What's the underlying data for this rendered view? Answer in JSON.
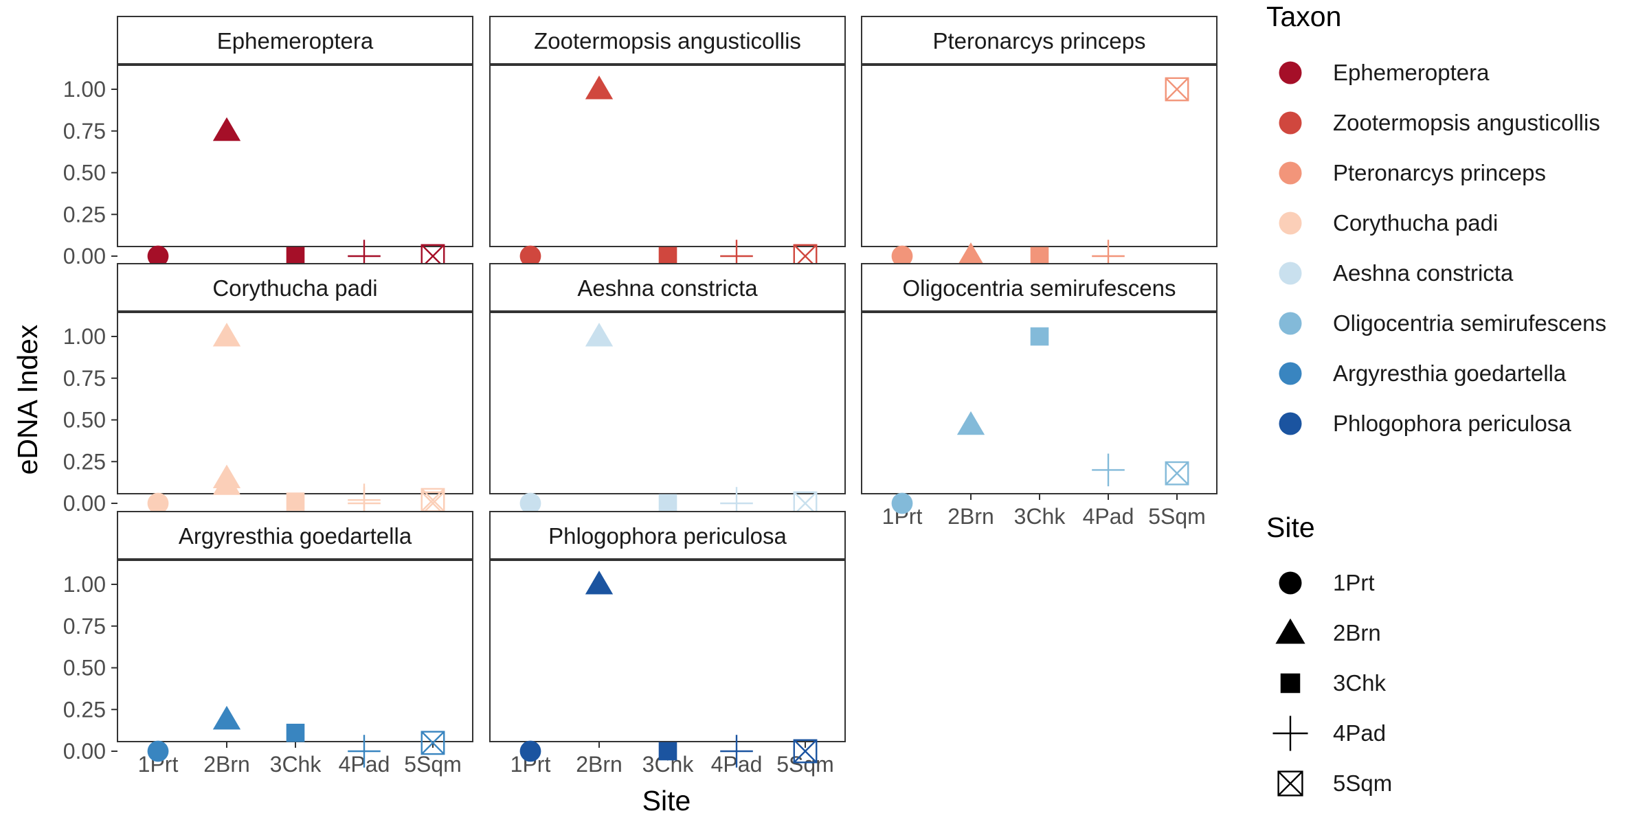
{
  "chart_data": {
    "type": "scatter",
    "facet_type": "faceted scatter (3 columns)",
    "xlabel": "Site",
    "ylabel": "eDNA Index",
    "categories": [
      "1Prt",
      "2Brn",
      "3Chk",
      "4Pad",
      "5Sqm"
    ],
    "ylim": [
      0,
      1
    ],
    "yticks": [
      "0.00",
      "0.25",
      "0.50",
      "0.75",
      "1.00"
    ],
    "grid": false,
    "legend_placement": "right",
    "legend_taxon": {
      "title": "Taxon",
      "entries": [
        {
          "name": "Ephemeroptera",
          "color": "#a50f28"
        },
        {
          "name": "Zootermopsis angusticollis",
          "color": "#d0473e"
        },
        {
          "name": "Pteronarcys princeps",
          "color": "#f2957a"
        },
        {
          "name": "Corythucha padi",
          "color": "#fbcfb8"
        },
        {
          "name": "Aeshna constricta",
          "color": "#c9e0ee"
        },
        {
          "name": "Oligocentria semirufescens",
          "color": "#83bad9"
        },
        {
          "name": "Argyresthia goedartella",
          "color": "#3985c0"
        },
        {
          "name": "Phlogophora periculosa",
          "color": "#1b54a0"
        }
      ]
    },
    "legend_site": {
      "title": "Site",
      "entries": [
        {
          "name": "1Prt",
          "shape": "circle"
        },
        {
          "name": "2Brn",
          "shape": "triangle"
        },
        {
          "name": "3Chk",
          "shape": "square"
        },
        {
          "name": "4Pad",
          "shape": "plus"
        },
        {
          "name": "5Sqm",
          "shape": "boxed-x"
        }
      ]
    },
    "panels": [
      {
        "title": "Ephemeroptera",
        "color": "#a50f28",
        "points": [
          {
            "site": "1Prt",
            "value": 0
          },
          {
            "site": "2Brn",
            "value": 0.75
          },
          {
            "site": "3Chk",
            "value": 0
          },
          {
            "site": "4Pad",
            "value": 0
          },
          {
            "site": "5Sqm",
            "value": 0
          }
        ]
      },
      {
        "title": "Zootermopsis angusticollis",
        "color": "#d0473e",
        "points": [
          {
            "site": "1Prt",
            "value": 0
          },
          {
            "site": "2Brn",
            "value": 1.0
          },
          {
            "site": "3Chk",
            "value": 0
          },
          {
            "site": "4Pad",
            "value": 0
          },
          {
            "site": "5Sqm",
            "value": 0
          }
        ]
      },
      {
        "title": "Pteronarcys princeps",
        "color": "#f2957a",
        "points": [
          {
            "site": "1Prt",
            "value": 0
          },
          {
            "site": "2Brn",
            "value": 0
          },
          {
            "site": "3Chk",
            "value": 0
          },
          {
            "site": "4Pad",
            "value": 0
          },
          {
            "site": "5Sqm",
            "value": 1.0
          }
        ]
      },
      {
        "title": "Corythucha padi",
        "color": "#fbcfb8",
        "points": [
          {
            "site": "1Prt",
            "value": 0
          },
          {
            "site": "2Brn",
            "value": 1.0
          },
          {
            "site": "2Brn",
            "value": 0.15
          },
          {
            "site": "2Brn",
            "value": 0.11
          },
          {
            "site": "3Chk",
            "value": 0.01
          },
          {
            "site": "4Pad",
            "value": 0.02
          },
          {
            "site": "4Pad",
            "value": 0
          },
          {
            "site": "5Sqm",
            "value": 0.02
          },
          {
            "site": "5Sqm",
            "value": 0
          }
        ]
      },
      {
        "title": "Aeshna constricta",
        "color": "#c9e0ee",
        "points": [
          {
            "site": "1Prt",
            "value": 0
          },
          {
            "site": "2Brn",
            "value": 1.0
          },
          {
            "site": "3Chk",
            "value": 0
          },
          {
            "site": "4Pad",
            "value": 0
          },
          {
            "site": "5Sqm",
            "value": 0
          }
        ]
      },
      {
        "title": "Oligocentria semirufescens",
        "color": "#83bad9",
        "points": [
          {
            "site": "1Prt",
            "value": 0
          },
          {
            "site": "2Brn",
            "value": 0.47
          },
          {
            "site": "3Chk",
            "value": 1.0
          },
          {
            "site": "4Pad",
            "value": 0.2
          },
          {
            "site": "5Sqm",
            "value": 0.18
          }
        ]
      },
      {
        "title": "Argyresthia goedartella",
        "color": "#3985c0",
        "points": [
          {
            "site": "1Prt",
            "value": 0
          },
          {
            "site": "2Brn",
            "value": 0.19
          },
          {
            "site": "3Chk",
            "value": 0.11
          },
          {
            "site": "4Pad",
            "value": 0
          },
          {
            "site": "5Sqm",
            "value": 0.05
          }
        ]
      },
      {
        "title": "Phlogophora periculosa",
        "color": "#1b54a0",
        "points": [
          {
            "site": "1Prt",
            "value": 0
          },
          {
            "site": "2Brn",
            "value": 1.0
          },
          {
            "site": "3Chk",
            "value": 0
          },
          {
            "site": "4Pad",
            "value": 0
          },
          {
            "site": "5Sqm",
            "value": 0
          }
        ]
      }
    ]
  }
}
